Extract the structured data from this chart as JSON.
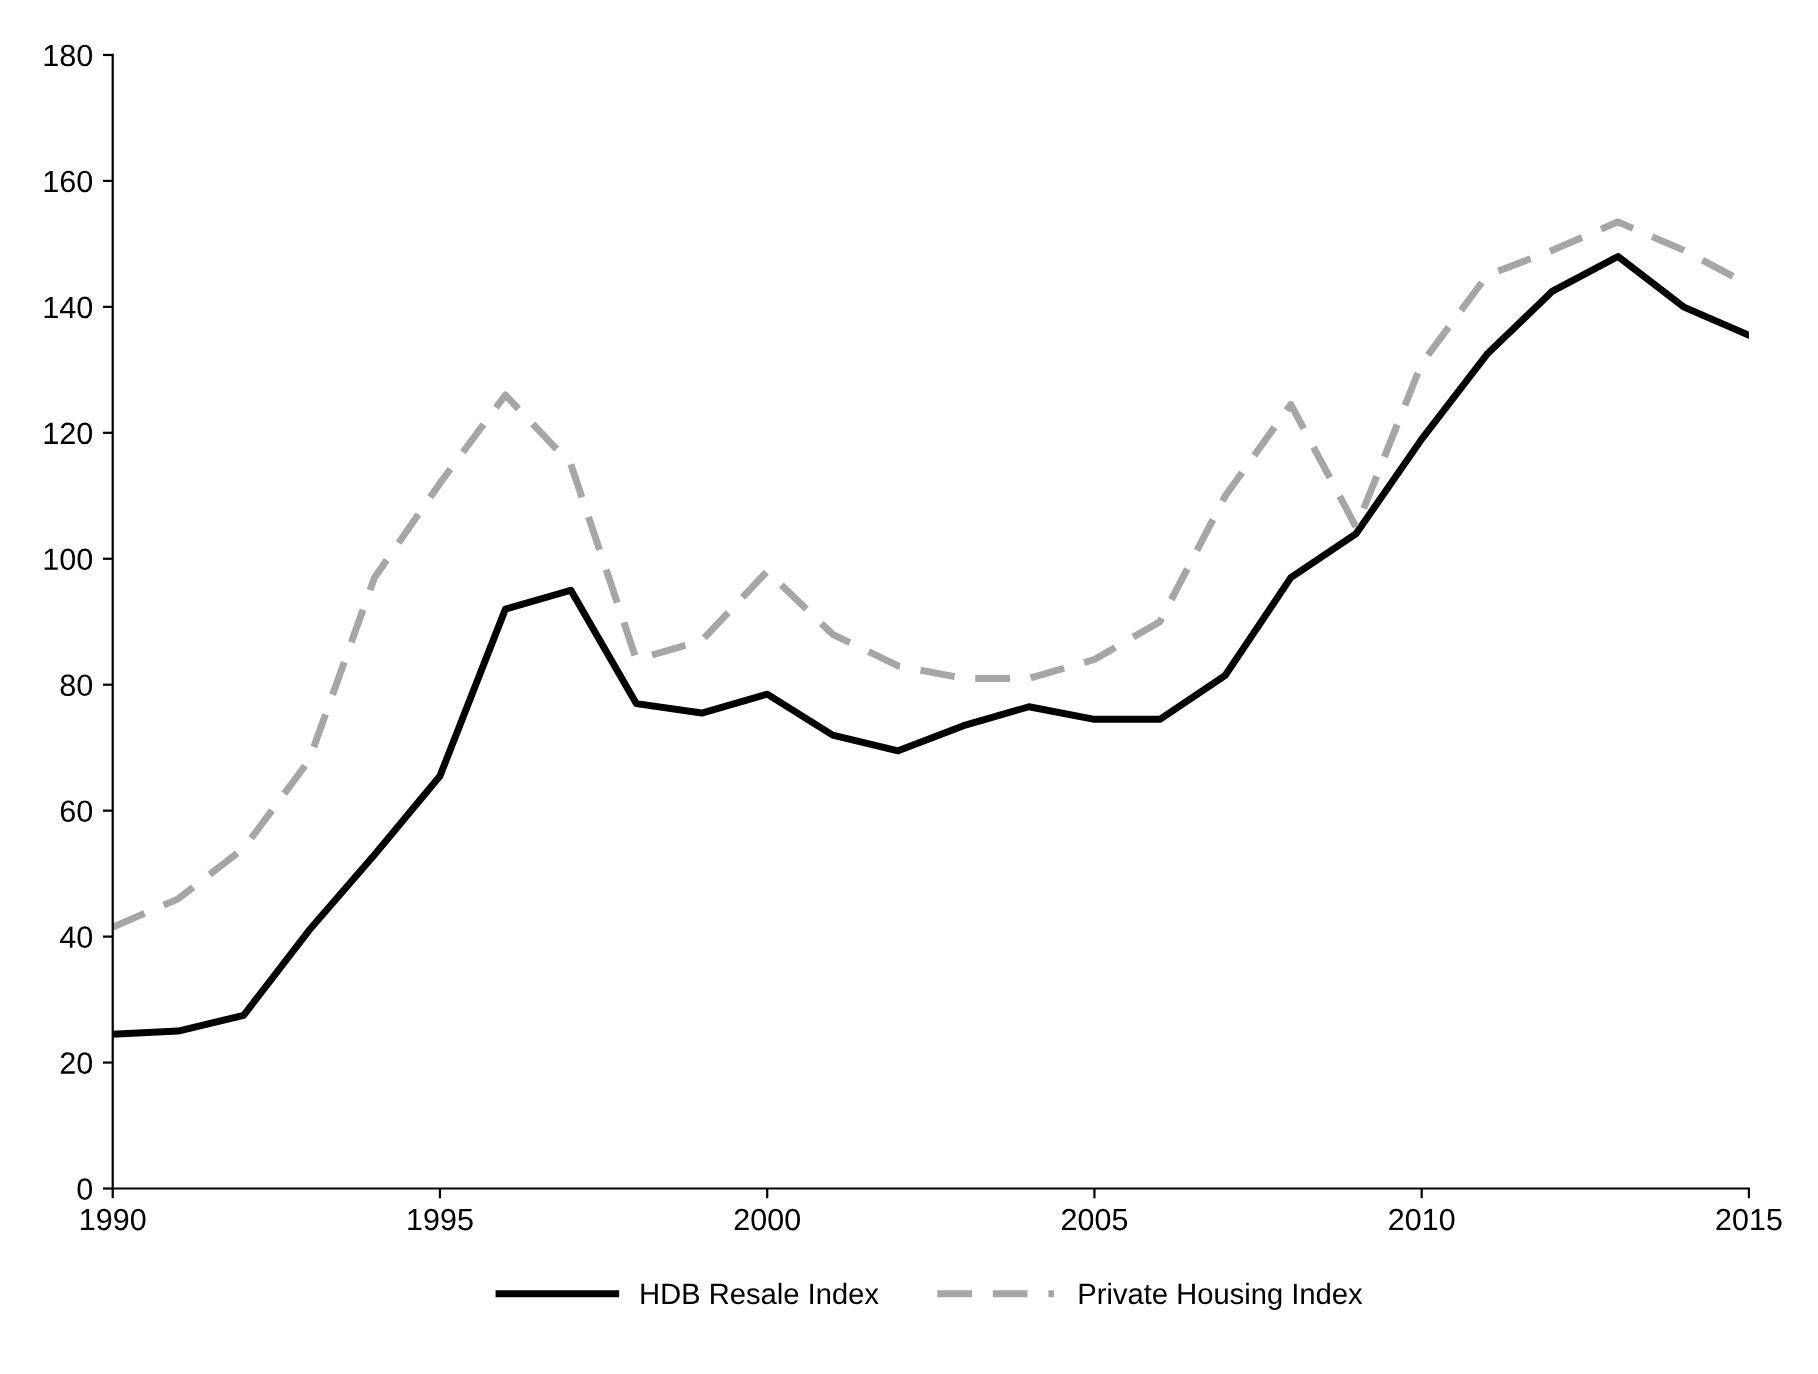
{
  "chart_data": {
    "type": "line",
    "x": [
      1990,
      1991,
      1992,
      1993,
      1994,
      1995,
      1996,
      1997,
      1998,
      1999,
      2000,
      2001,
      2002,
      2003,
      2004,
      2005,
      2006,
      2007,
      2008,
      2009,
      2010,
      2011,
      2012,
      2013,
      2014,
      2015
    ],
    "series": [
      {
        "name": "HDB Resale Index",
        "color": "#000000",
        "line_style": "solid",
        "values": [
          24.5,
          25,
          27.5,
          41,
          53,
          65.5,
          92,
          95,
          77,
          75.5,
          78.5,
          72,
          69.5,
          73.5,
          76.5,
          74.5,
          74.5,
          81.5,
          97,
          104,
          119,
          132.5,
          142.5,
          148,
          140,
          135.5
        ]
      },
      {
        "name": "Private Housing Index",
        "color": "#a6a6a6",
        "line_style": "dashed",
        "values": [
          41.5,
          46,
          54,
          68,
          97,
          112,
          126,
          115,
          84,
          87,
          98,
          88,
          83,
          81,
          81,
          84,
          90,
          110,
          124.5,
          105,
          131,
          145,
          149,
          153.5,
          149,
          143.5
        ]
      }
    ],
    "xlim": [
      1990,
      2015
    ],
    "xticks": [
      1990,
      1995,
      2000,
      2005,
      2010,
      2015
    ],
    "ylim": [
      0,
      180
    ],
    "yticks": [
      0,
      20,
      40,
      60,
      80,
      100,
      120,
      140,
      160,
      180
    ],
    "grid": false,
    "legend": "bottom",
    "marker": "none"
  }
}
